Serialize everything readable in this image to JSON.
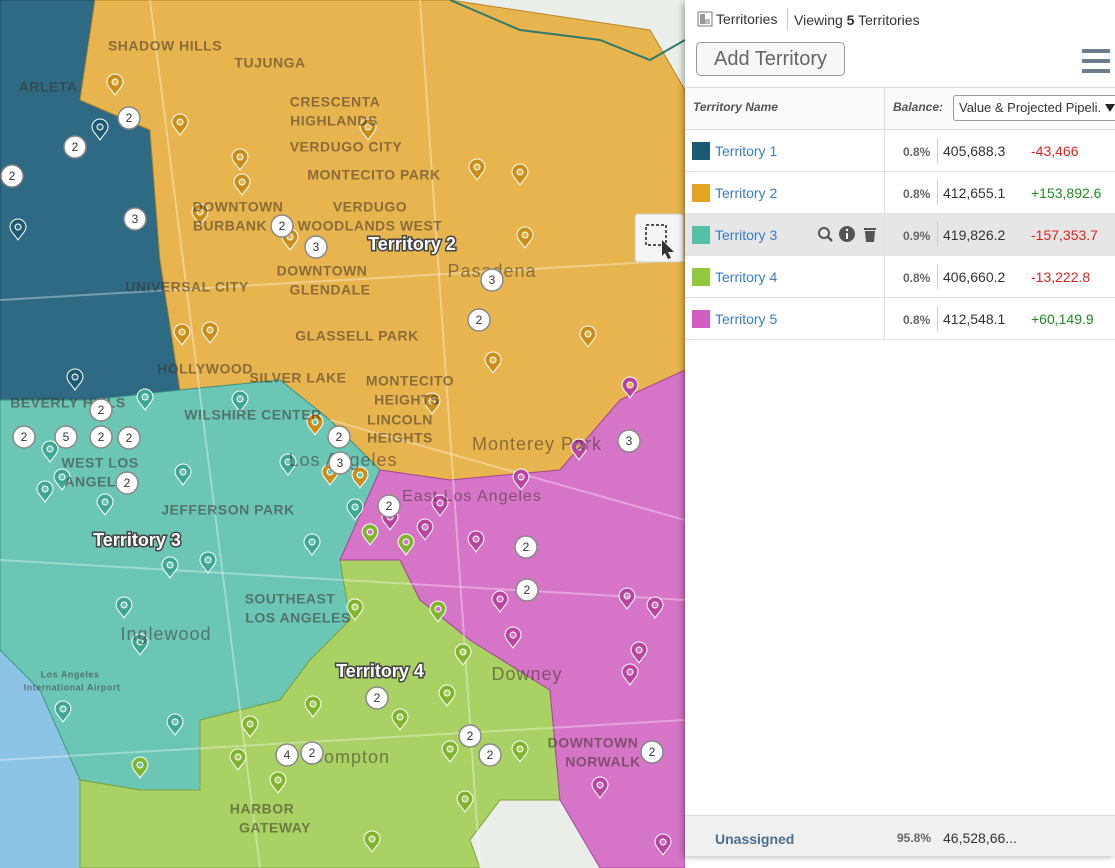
{
  "panel": {
    "title": "Territories",
    "viewing_prefix": "Viewing",
    "viewing_count": "5",
    "viewing_suffix": "Territories",
    "add_button": "Add Territory",
    "column_name": "Territory Name",
    "balance_label": "Balance:",
    "balance_select": "Value & Projected Pipeli.",
    "rows": [
      {
        "name": "Territory 1",
        "color": "#1b5a72",
        "share": "0.8%",
        "value": "405,688.3",
        "balance": "-43,466"
      },
      {
        "name": "Territory 2",
        "color": "#e3a325",
        "share": "0.8%",
        "value": "412,655.1",
        "balance": "+153,892.6"
      },
      {
        "name": "Territory 3",
        "color": "#56bfa8",
        "share": "0.9%",
        "value": "419,826.2",
        "balance": "-157,353.7"
      },
      {
        "name": "Territory 4",
        "color": "#92c83e",
        "share": "0.8%",
        "value": "406,660.2",
        "balance": "-13,222.8"
      },
      {
        "name": "Territory 5",
        "color": "#d25ec3",
        "share": "0.8%",
        "value": "412,548.1",
        "balance": "+60,149.9"
      }
    ],
    "unassigned": {
      "name": "Unassigned",
      "share": "95.8%",
      "value": "46,528,66..."
    }
  },
  "map": {
    "territory_labels": [
      "Territory 2",
      "Territory 3",
      "Territory 4"
    ],
    "place_labels": [
      "SHADOW HILLS",
      "TUJUNGA",
      "ARLETA",
      "CRESCENTA",
      "HIGHLANDS",
      "VERDUGO CITY",
      "MONTECITO PARK",
      "DOWNTOWN",
      "VERDUGO",
      "BURBANK",
      "WOODLANDS WEST",
      "Pasadena",
      "DOWNTOWN",
      "GLENDALE",
      "UNIVERSAL CITY",
      "GLASSELL PARK",
      "HOLLYWOOD",
      "SILVER LAKE",
      "MONTECITO",
      "HEIGHTS",
      "LINCOLN",
      "HEIGHTS",
      "Monterey Park",
      "Los Angeles",
      "East Los Angeles",
      "BEVERLY HILLS",
      "WILSHIRE CENTER",
      "WEST LOS",
      "ANGELES",
      "JEFFERSON PARK",
      "SOUTHEAST",
      "LOS ANGELES",
      "Inglewood",
      "Downey",
      "Compton",
      "DOWNTOWN",
      "NORWALK",
      "HARBOR",
      "GATEWAY",
      "Los Angeles",
      "International Airport"
    ],
    "clusters": [
      "2",
      "2",
      "2",
      "3",
      "2",
      "3",
      "3",
      "2",
      "2",
      "2",
      "5",
      "2",
      "2",
      "2",
      "2",
      "3",
      "2",
      "2",
      "2",
      "3",
      "2",
      "4",
      "2",
      "2",
      "2",
      "2"
    ]
  }
}
